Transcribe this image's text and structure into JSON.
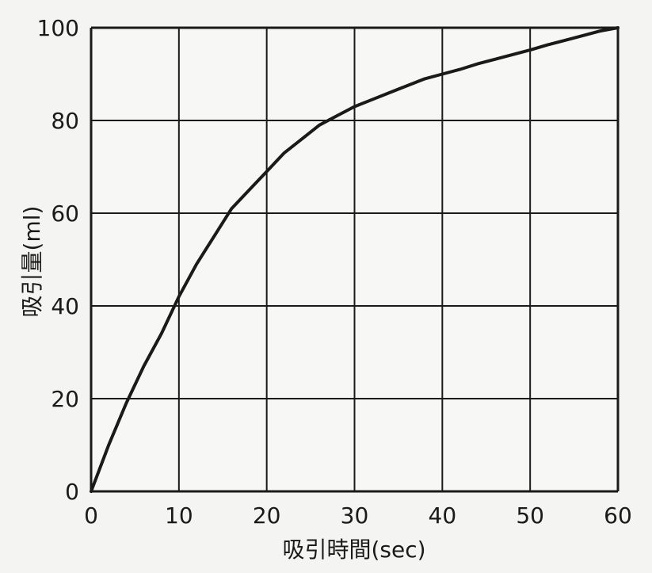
{
  "chart_data": {
    "type": "line",
    "title": "",
    "xlabel": "吸引時間(sec)",
    "ylabel": "吸引量(ml)",
    "xlim": [
      0,
      60
    ],
    "ylim": [
      0,
      100
    ],
    "grid": true,
    "x_ticks": [
      0,
      10,
      20,
      30,
      40,
      50,
      60
    ],
    "y_ticks": [
      0,
      20,
      40,
      60,
      80,
      100
    ],
    "series": [
      {
        "x": [
          0,
          1,
          2,
          4,
          6,
          8,
          10,
          12,
          14,
          16,
          18,
          20,
          22,
          24,
          26,
          28,
          30,
          32,
          34,
          36,
          38,
          40,
          42,
          44,
          46,
          48,
          50,
          52,
          54,
          56,
          58,
          60
        ],
        "values": [
          0,
          5,
          10,
          19,
          27,
          34,
          42,
          49,
          55,
          61,
          65,
          69,
          73,
          76,
          79,
          81,
          83,
          84.5,
          86,
          87.5,
          89,
          90,
          91,
          92.2,
          93.2,
          94.2,
          95.2,
          96.3,
          97.3,
          98.3,
          99.3,
          100
        ],
        "color": "#1a1a1a"
      }
    ]
  }
}
